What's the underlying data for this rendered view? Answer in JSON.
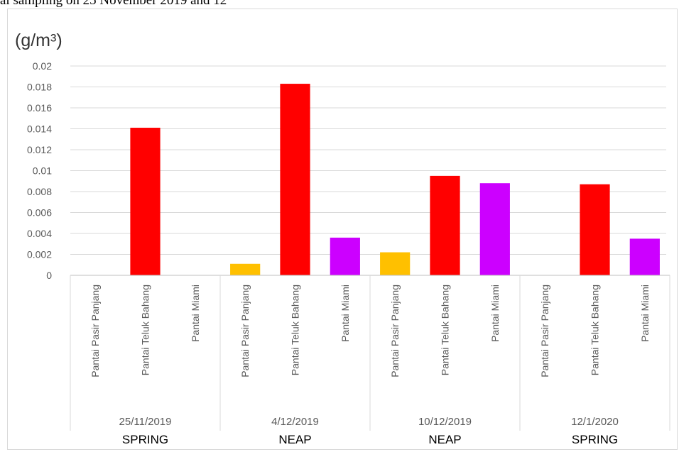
{
  "caption_fragment": "al sampling on 25 November 2019 and 12",
  "chart_data": {
    "type": "bar",
    "unit_label": "(g/m³)",
    "ylim": [
      0,
      0.02
    ],
    "yticks": [
      "0",
      "0.002",
      "0.004",
      "0.006",
      "0.008",
      "0.01",
      "0.012",
      "0.014",
      "0.016",
      "0.018",
      "0.02"
    ],
    "grid": true,
    "groups": [
      {
        "date": "25/11/2019",
        "tide": "SPRING",
        "bars": [
          {
            "category": "Pantai Pasir Panjang",
            "value": 0,
            "color": "#FFC000"
          },
          {
            "category": "Pantai Teluk Bahang",
            "value": 0.0141,
            "color": "#FF0000"
          },
          {
            "category": "Pantai Miami",
            "value": 0,
            "color": "#CC00FF"
          }
        ]
      },
      {
        "date": "4/12/2019",
        "tide": "NEAP",
        "bars": [
          {
            "category": "Pantai Pasir Panjang",
            "value": 0.0011,
            "color": "#FFC000"
          },
          {
            "category": "Pantai Teluk Bahang",
            "value": 0.0183,
            "color": "#FF0000"
          },
          {
            "category": "Pantai Miami",
            "value": 0.0036,
            "color": "#CC00FF"
          }
        ]
      },
      {
        "date": "10/12/2019",
        "tide": "NEAP",
        "bars": [
          {
            "category": "Pantai Pasir Panjang",
            "value": 0.0022,
            "color": "#FFC000"
          },
          {
            "category": "Pantai Teluk Bahang",
            "value": 0.0095,
            "color": "#FF0000"
          },
          {
            "category": "Pantai Miami",
            "value": 0.0088,
            "color": "#CC00FF"
          }
        ]
      },
      {
        "date": "12/1/2020",
        "tide": "SPRING",
        "bars": [
          {
            "category": "Pantai Pasir Panjang",
            "value": 0,
            "color": "#FFC000"
          },
          {
            "category": "Pantai Teluk Bahang",
            "value": 0.0087,
            "color": "#FF0000"
          },
          {
            "category": "Pantai Miami",
            "value": 0.0035,
            "color": "#CC00FF"
          }
        ]
      }
    ]
  }
}
